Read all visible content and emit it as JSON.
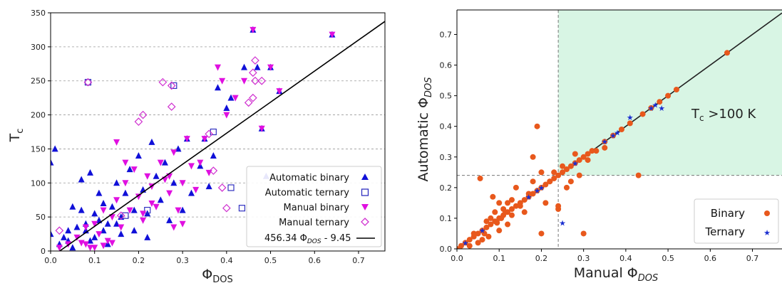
{
  "colors": {
    "auto_binary": "#1010d8",
    "auto_ternary": "#3030c0",
    "manual_binary": "#e010e0",
    "manual_ternary": "#d030d0",
    "binary_orange": "#e8581c",
    "ternary_blue": "#1b2fd0",
    "region_fill": "#d8f5e4",
    "fit_line": "#000000"
  },
  "chart_data": [
    {
      "type": "scatter",
      "title": "",
      "xlabel": "Φ",
      "xlabel_sub": "DOS",
      "ylabel": "T",
      "ylabel_sub": "c",
      "xlim": [
        0.0,
        0.76
      ],
      "ylim": [
        0,
        350
      ],
      "xticks": [
        "0.0",
        "0.1",
        "0.2",
        "0.3",
        "0.4",
        "0.5",
        "0.6",
        "0.7"
      ],
      "yticks": [
        "0",
        "50",
        "100",
        "150",
        "200",
        "250",
        "300",
        "350"
      ],
      "grid": "horizontal dashed",
      "legend_position": "lower-right",
      "fit_line": {
        "label_parts": [
          "456.34 Φ",
          "DOS",
          " - 9.45"
        ],
        "slope": 456.34,
        "intercept": -9.45
      },
      "series": [
        {
          "name": "Automatic binary",
          "marker": "triangle-up",
          "points": [
            [
              0.01,
              150
            ],
            [
              0.0,
              130
            ],
            [
              0.0,
              25
            ],
            [
              0.02,
              10
            ],
            [
              0.03,
              20
            ],
            [
              0.04,
              30
            ],
            [
              0.05,
              5
            ],
            [
              0.06,
              35
            ],
            [
              0.07,
              60
            ],
            [
              0.08,
              40
            ],
            [
              0.09,
              15
            ],
            [
              0.1,
              55
            ],
            [
              0.1,
              20
            ],
            [
              0.11,
              45
            ],
            [
              0.12,
              30
            ],
            [
              0.12,
              70
            ],
            [
              0.13,
              10
            ],
            [
              0.14,
              65
            ],
            [
              0.15,
              40
            ],
            [
              0.15,
              100
            ],
            [
              0.16,
              50
            ],
            [
              0.17,
              85
            ],
            [
              0.18,
              120
            ],
            [
              0.19,
              60
            ],
            [
              0.2,
              140
            ],
            [
              0.21,
              90
            ],
            [
              0.22,
              55
            ],
            [
              0.23,
              160
            ],
            [
              0.24,
              110
            ],
            [
              0.25,
              75
            ],
            [
              0.26,
              130
            ],
            [
              0.27,
              45
            ],
            [
              0.28,
              100
            ],
            [
              0.29,
              150
            ],
            [
              0.3,
              60
            ],
            [
              0.31,
              165
            ],
            [
              0.32,
              85
            ],
            [
              0.34,
              125
            ],
            [
              0.35,
              165
            ],
            [
              0.36,
              95
            ],
            [
              0.37,
              140
            ],
            [
              0.38,
              240
            ],
            [
              0.4,
              210
            ],
            [
              0.41,
              225
            ],
            [
              0.44,
              270
            ],
            [
              0.46,
              325
            ],
            [
              0.47,
              270
            ],
            [
              0.48,
              180
            ],
            [
              0.49,
              110
            ],
            [
              0.5,
              270
            ],
            [
              0.52,
              235
            ],
            [
              0.64,
              318
            ],
            [
              0.09,
              115
            ],
            [
              0.11,
              85
            ],
            [
              0.13,
              40
            ],
            [
              0.16,
              25
            ],
            [
              0.19,
              30
            ],
            [
              0.22,
              20
            ],
            [
              0.07,
              105
            ],
            [
              0.05,
              65
            ],
            [
              0.08,
              30
            ],
            [
              0.04,
              15
            ]
          ]
        },
        {
          "name": "Automatic ternary",
          "marker": "square-open",
          "points": [
            [
              0.085,
              248
            ],
            [
              0.22,
              60
            ],
            [
              0.28,
              243
            ],
            [
              0.37,
              175
            ],
            [
              0.41,
              93
            ],
            [
              0.435,
              63
            ],
            [
              0.17,
              52
            ]
          ]
        },
        {
          "name": "Manual binary",
          "marker": "triangle-down",
          "points": [
            [
              0.02,
              5
            ],
            [
              0.04,
              10
            ],
            [
              0.06,
              20
            ],
            [
              0.07,
              12
            ],
            [
              0.08,
              35
            ],
            [
              0.09,
              5
            ],
            [
              0.1,
              40
            ],
            [
              0.11,
              25
            ],
            [
              0.12,
              60
            ],
            [
              0.13,
              15
            ],
            [
              0.14,
              50
            ],
            [
              0.15,
              75
            ],
            [
              0.16,
              35
            ],
            [
              0.17,
              100
            ],
            [
              0.18,
              60
            ],
            [
              0.19,
              120
            ],
            [
              0.2,
              80
            ],
            [
              0.21,
              45
            ],
            [
              0.22,
              110
            ],
            [
              0.23,
              95
            ],
            [
              0.24,
              65
            ],
            [
              0.25,
              130
            ],
            [
              0.26,
              105
            ],
            [
              0.27,
              85
            ],
            [
              0.28,
              145
            ],
            [
              0.29,
              60
            ],
            [
              0.3,
              100
            ],
            [
              0.31,
              165
            ],
            [
              0.32,
              125
            ],
            [
              0.33,
              90
            ],
            [
              0.34,
              130
            ],
            [
              0.35,
              165
            ],
            [
              0.36,
              115
            ],
            [
              0.38,
              270
            ],
            [
              0.39,
              250
            ],
            [
              0.4,
              200
            ],
            [
              0.42,
              225
            ],
            [
              0.44,
              250
            ],
            [
              0.46,
              325
            ],
            [
              0.48,
              180
            ],
            [
              0.5,
              270
            ],
            [
              0.52,
              235
            ],
            [
              0.64,
              318
            ],
            [
              0.1,
              5
            ],
            [
              0.08,
              10
            ],
            [
              0.12,
              8
            ],
            [
              0.14,
              12
            ],
            [
              0.17,
              130
            ],
            [
              0.23,
              70
            ],
            [
              0.28,
              35
            ],
            [
              0.3,
              40
            ],
            [
              0.15,
              160
            ],
            [
              0.21,
              55
            ],
            [
              0.27,
              110
            ]
          ]
        },
        {
          "name": "Manual ternary",
          "marker": "diamond-open",
          "points": [
            [
              0.02,
              30
            ],
            [
              0.085,
              248
            ],
            [
              0.16,
              52
            ],
            [
              0.2,
              190
            ],
            [
              0.21,
              200
            ],
            [
              0.255,
              248
            ],
            [
              0.275,
              212
            ],
            [
              0.275,
              243
            ],
            [
              0.36,
              172
            ],
            [
              0.37,
              118
            ],
            [
              0.39,
              93
            ],
            [
              0.4,
              63
            ],
            [
              0.45,
              218
            ],
            [
              0.46,
              225
            ],
            [
              0.46,
              262
            ],
            [
              0.465,
              280
            ],
            [
              0.48,
              250
            ],
            [
              0.465,
              250
            ]
          ]
        }
      ]
    },
    {
      "type": "scatter",
      "title": "",
      "xlabel": "Manual Φ",
      "xlabel_sub": "DOS",
      "ylabel": "Automatic Φ",
      "ylabel_sub": "DOS",
      "xlim": [
        0.0,
        0.77
      ],
      "ylim": [
        0.0,
        0.78
      ],
      "xticks": [
        "0.0",
        "0.1",
        "0.2",
        "0.3",
        "0.4",
        "0.5",
        "0.6",
        "0.7"
      ],
      "yticks": [
        "0.0",
        "0.1",
        "0.2",
        "0.3",
        "0.4",
        "0.5",
        "0.6",
        "0.7"
      ],
      "threshold": 0.24,
      "annotation_parts": [
        "T",
        "c",
        " >100 K"
      ],
      "legend_position": "lower-right",
      "series": [
        {
          "name": "Binary",
          "marker": "circle",
          "points": [
            [
              0.0,
              0.0
            ],
            [
              0.01,
              0.01
            ],
            [
              0.02,
              0.02
            ],
            [
              0.03,
              0.03
            ],
            [
              0.04,
              0.04
            ],
            [
              0.05,
              0.05
            ],
            [
              0.06,
              0.06
            ],
            [
              0.07,
              0.07
            ],
            [
              0.08,
              0.08
            ],
            [
              0.09,
              0.09
            ],
            [
              0.1,
              0.1
            ],
            [
              0.11,
              0.11
            ],
            [
              0.12,
              0.12
            ],
            [
              0.13,
              0.13
            ],
            [
              0.14,
              0.14
            ],
            [
              0.15,
              0.15
            ],
            [
              0.16,
              0.16
            ],
            [
              0.17,
              0.17
            ],
            [
              0.18,
              0.18
            ],
            [
              0.19,
              0.19
            ],
            [
              0.2,
              0.2
            ],
            [
              0.21,
              0.21
            ],
            [
              0.22,
              0.22
            ],
            [
              0.23,
              0.23
            ],
            [
              0.24,
              0.24
            ],
            [
              0.25,
              0.25
            ],
            [
              0.26,
              0.26
            ],
            [
              0.27,
              0.27
            ],
            [
              0.28,
              0.28
            ],
            [
              0.29,
              0.29
            ],
            [
              0.3,
              0.3
            ],
            [
              0.31,
              0.31
            ],
            [
              0.32,
              0.32
            ],
            [
              0.35,
              0.35
            ],
            [
              0.37,
              0.37
            ],
            [
              0.39,
              0.39
            ],
            [
              0.41,
              0.41
            ],
            [
              0.44,
              0.44
            ],
            [
              0.46,
              0.46
            ],
            [
              0.48,
              0.48
            ],
            [
              0.5,
              0.5
            ],
            [
              0.52,
              0.52
            ],
            [
              0.64,
              0.64
            ],
            [
              0.055,
              0.23
            ],
            [
              0.19,
              0.4
            ],
            [
              0.17,
              0.18
            ],
            [
              0.16,
              0.12
            ],
            [
              0.15,
              0.14
            ],
            [
              0.13,
              0.16
            ],
            [
              0.12,
              0.08
            ],
            [
              0.11,
              0.13
            ],
            [
              0.1,
              0.06
            ],
            [
              0.09,
              0.12
            ],
            [
              0.085,
              0.17
            ],
            [
              0.08,
              0.1
            ],
            [
              0.075,
              0.04
            ],
            [
              0.07,
              0.09
            ],
            [
              0.065,
              0.05
            ],
            [
              0.06,
              0.03
            ],
            [
              0.05,
              0.02
            ],
            [
              0.04,
              0.05
            ],
            [
              0.03,
              0.01
            ],
            [
              0.18,
              0.3
            ],
            [
              0.2,
              0.05
            ],
            [
              0.21,
              0.15
            ],
            [
              0.22,
              0.22
            ],
            [
              0.23,
              0.25
            ],
            [
              0.24,
              0.13
            ],
            [
              0.24,
              0.14
            ],
            [
              0.25,
              0.27
            ],
            [
              0.26,
              0.2
            ],
            [
              0.27,
              0.22
            ],
            [
              0.28,
              0.31
            ],
            [
              0.29,
              0.24
            ],
            [
              0.3,
              0.05
            ],
            [
              0.31,
              0.29
            ],
            [
              0.33,
              0.32
            ],
            [
              0.35,
              0.33
            ],
            [
              0.43,
              0.24
            ],
            [
              0.14,
              0.2
            ],
            [
              0.1,
              0.15
            ],
            [
              0.12,
              0.15
            ],
            [
              0.13,
              0.11
            ],
            [
              0.115,
              0.12
            ],
            [
              0.105,
              0.1
            ],
            [
              0.095,
              0.085
            ],
            [
              0.18,
              0.22
            ],
            [
              0.2,
              0.25
            ]
          ]
        },
        {
          "name": "Ternary",
          "marker": "star",
          "points": [
            [
              0.02,
              0.02
            ],
            [
              0.06,
              0.06
            ],
            [
              0.17,
              0.17
            ],
            [
              0.19,
              0.19
            ],
            [
              0.2,
              0.2
            ],
            [
              0.25,
              0.085
            ],
            [
              0.28,
              0.28
            ],
            [
              0.35,
              0.35
            ],
            [
              0.37,
              0.37
            ],
            [
              0.38,
              0.38
            ],
            [
              0.41,
              0.43
            ],
            [
              0.46,
              0.46
            ],
            [
              0.47,
              0.47
            ],
            [
              0.485,
              0.46
            ]
          ]
        }
      ]
    }
  ]
}
